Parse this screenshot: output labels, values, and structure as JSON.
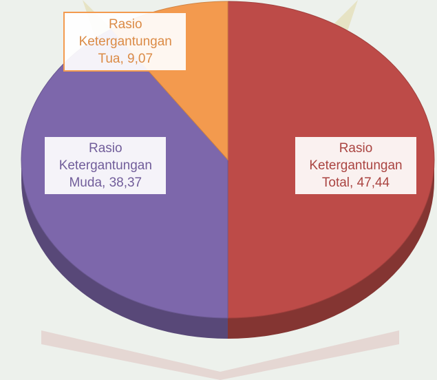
{
  "chart_data": {
    "type": "pie",
    "values": [
      47.44,
      38.37,
      9.07
    ],
    "value_labels": [
      "Rasio Ketergantungan Total, 47,44",
      "Rasio Ketergantungan Muda, 38,37",
      "Rasio Ketergantungan Tua, 9,07"
    ],
    "colors": [
      "#bd4b48",
      "#7d67ab",
      "#f39a4e"
    ],
    "start_angle": 0,
    "direction": "clockwise",
    "three_d": true
  }
}
